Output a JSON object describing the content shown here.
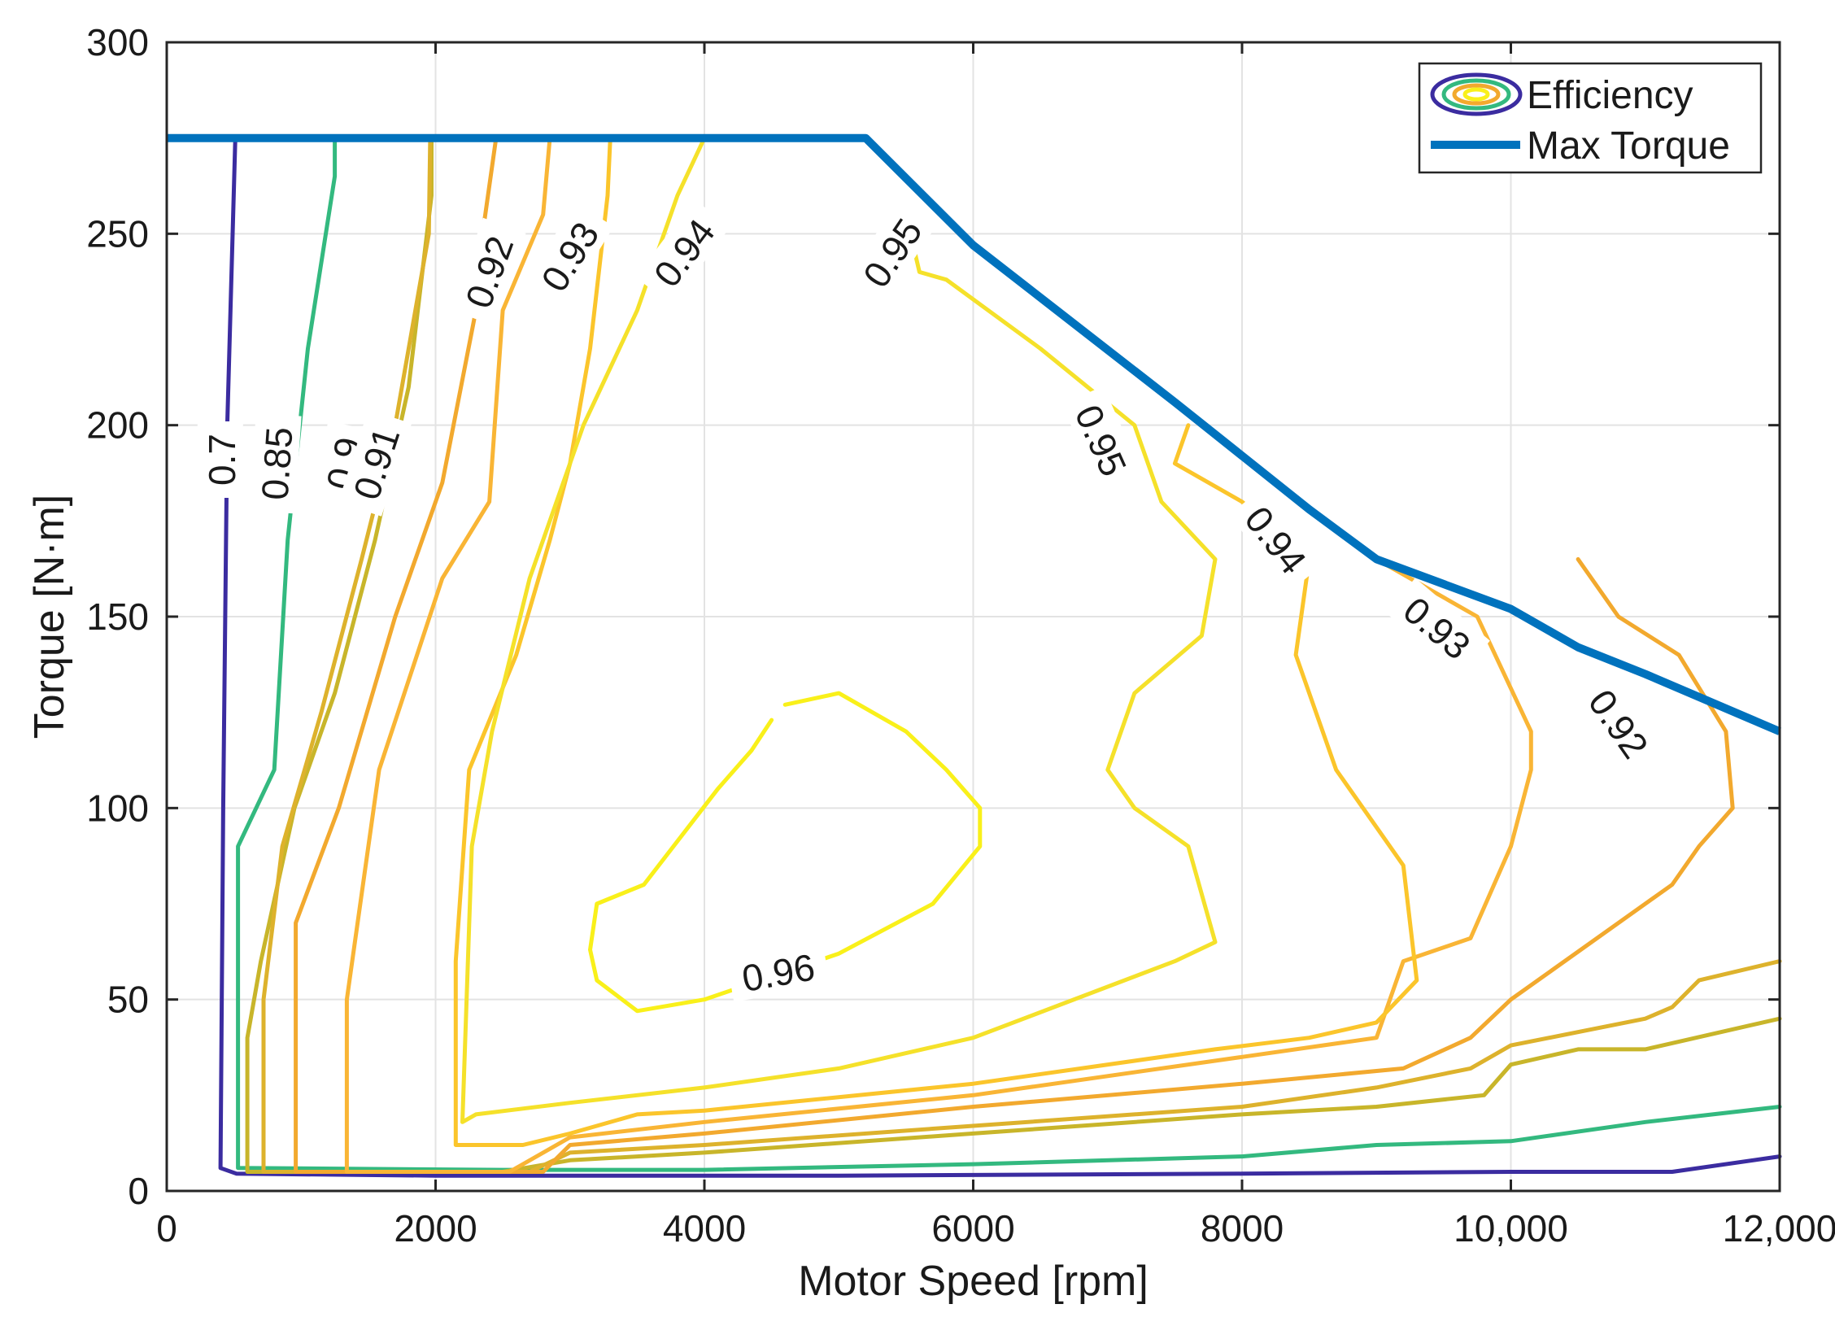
{
  "chart_data": {
    "type": "contour",
    "title": "",
    "xlabel": "Motor Speed [rpm]",
    "ylabel": "Torque [N·m]",
    "xlim": [
      0,
      12000
    ],
    "ylim": [
      0,
      300
    ],
    "grid": true,
    "legend_position": "top-right",
    "x_ticks": [
      0,
      2000,
      4000,
      6000,
      8000,
      10000,
      12000
    ],
    "x_tick_labels": [
      "0",
      "2000",
      "4000",
      "6000",
      "8000",
      "10,000",
      "12,000"
    ],
    "y_ticks": [
      0,
      50,
      100,
      150,
      200,
      250,
      300
    ],
    "y_tick_labels": [
      "0",
      "50",
      "100",
      "150",
      "200",
      "250",
      "300"
    ],
    "legend": [
      {
        "label": "Efficiency",
        "kind": "contour"
      },
      {
        "label": "Max Torque",
        "kind": "line"
      }
    ],
    "max_torque": {
      "name": "Max Torque",
      "color": "#0072bd",
      "x": [
        0,
        5200,
        6000,
        7500,
        8500,
        9000,
        10000,
        10500,
        11000,
        12000
      ],
      "y": [
        275,
        275,
        247,
        206,
        178,
        165,
        152,
        142,
        135,
        120
      ]
    },
    "contours": [
      {
        "level": 0.7,
        "color": "#3b2ca0",
        "x": [
          510,
          450,
          420,
          400,
          520,
          2000,
          5000,
          8000,
          10000,
          11200,
          12000
        ],
        "y": [
          275,
          200,
          100,
          6,
          4.5,
          4,
          4,
          4.5,
          5,
          5,
          9
        ]
      },
      {
        "level": 0.85,
        "color": "#33b97f",
        "x": [
          1250,
          1250,
          1050,
          900,
          800,
          530,
          530,
          2500,
          3000,
          4000,
          6000,
          8000,
          9000,
          10000,
          11000,
          12000
        ],
        "y": [
          275,
          265,
          220,
          170,
          110,
          90,
          6,
          5.5,
          5.5,
          5.5,
          7,
          9,
          12,
          13,
          18,
          22
        ]
      },
      {
        "level": 0.9,
        "color": "#c8b52a",
        "x": [
          1970,
          1970,
          1800,
          1550,
          1250,
          950,
          700,
          600,
          600,
          2500,
          3000,
          4000,
          6000,
          8000,
          9000,
          9800,
          10000,
          10500,
          11000,
          12000
        ],
        "y": [
          275,
          260,
          210,
          170,
          130,
          100,
          60,
          40,
          5,
          5,
          8,
          10,
          15,
          20,
          22,
          25,
          33,
          37,
          37,
          45
        ]
      },
      {
        "level": 0.91,
        "color": "#ddb22c",
        "x": [
          1960,
          1950,
          1700,
          1450,
          1150,
          860,
          720,
          720,
          2700,
          3000,
          4000,
          6000,
          8000,
          9000,
          9700,
          10000,
          11000,
          11200,
          11400,
          12000
        ],
        "y": [
          275,
          250,
          200,
          165,
          125,
          90,
          50,
          5,
          5,
          10,
          12,
          17,
          22,
          27,
          32,
          38,
          45,
          48,
          55,
          60
        ]
      },
      {
        "level": 0.92,
        "color": "#f2a92e",
        "x": [
          2450,
          2350,
          2300,
          2050,
          1700,
          1280,
          960,
          960,
          2800,
          3000,
          4000,
          6000,
          8000,
          9200,
          9700,
          10000,
          11200,
          11400,
          11650,
          11600,
          11250,
          10800,
          10500
        ],
        "y": [
          275,
          250,
          230,
          185,
          150,
          100,
          70,
          5,
          5,
          12,
          15,
          22,
          28,
          32,
          40,
          50,
          80,
          90,
          100,
          120,
          140,
          150,
          165
        ]
      },
      {
        "level": 0.93,
        "color": "#f9b535",
        "x": [
          2850,
          2800,
          2500,
          2400,
          2050,
          1580,
          1340,
          1340,
          2550,
          3000,
          4000,
          6000,
          8000,
          9000,
          9200,
          9700,
          10000,
          10150,
          10150,
          9750,
          9000
        ],
        "y": [
          275,
          255,
          230,
          180,
          160,
          110,
          50,
          5,
          5,
          14,
          18,
          25,
          35,
          40,
          60,
          66,
          90,
          110,
          120,
          150,
          165
        ]
      },
      {
        "level": 0.94,
        "color": "#fbc52b",
        "x": [
          3300,
          3280,
          3150,
          3000,
          2850,
          2600,
          2250,
          2150,
          2150,
          2650,
          3000,
          3500,
          4000,
          6000,
          7800,
          8500,
          9000,
          9300,
          9200,
          8700,
          8400,
          8500,
          8000,
          7500,
          7600
        ],
        "y": [
          275,
          260,
          220,
          190,
          170,
          140,
          110,
          60,
          12,
          12,
          15,
          20,
          21,
          28,
          37,
          40,
          44,
          55,
          85,
          110,
          140,
          165,
          180,
          190,
          200
        ]
      },
      {
        "level": 0.95,
        "color": "#f5e12a",
        "x": [
          4000,
          3800,
          3500,
          3100,
          2700,
          2420,
          2270,
          2200,
          2300,
          3000,
          4000,
          5000,
          6000,
          7500,
          7800,
          7600,
          7200,
          7000,
          7200,
          7700,
          7800,
          7400,
          7200,
          6500,
          5800,
          5600,
          5500
        ],
        "y": [
          275,
          260,
          230,
          200,
          160,
          120,
          90,
          18,
          20,
          23,
          27,
          32,
          40,
          60,
          65,
          90,
          100,
          110,
          130,
          145,
          165,
          180,
          200,
          220,
          238,
          240,
          255
        ]
      },
      {
        "level": 0.96,
        "color": "#f9f01a",
        "x": [
          4500,
          4350,
          4100,
          3550,
          3200,
          3150,
          3200,
          3500,
          4000,
          5000,
          5700,
          6050,
          6050,
          5800,
          5500,
          5000,
          4600
        ],
        "y": [
          123,
          115,
          105,
          80,
          75,
          63,
          55,
          47,
          50,
          62,
          75,
          90,
          100,
          110,
          120,
          130,
          127
        ]
      }
    ],
    "contour_labels": [
      {
        "text": "0.7",
        "x": 410,
        "y": 191,
        "angle": -90
      },
      {
        "text": "0.85",
        "x": 820,
        "y": 190,
        "angle": -86
      },
      {
        "text": "0.9",
        "x": 1320,
        "y": 190,
        "angle": -78
      },
      {
        "text": "0.91",
        "x": 1560,
        "y": 190,
        "angle": -72
      },
      {
        "text": "0.92",
        "x": 2400,
        "y": 240,
        "angle": -70
      },
      {
        "text": "0.93",
        "x": 3000,
        "y": 244,
        "angle": -58
      },
      {
        "text": "0.94",
        "x": 3850,
        "y": 245,
        "angle": -53
      },
      {
        "text": "0.95",
        "x": 5400,
        "y": 245,
        "angle": -56
      },
      {
        "text": "0.95",
        "x": 6950,
        "y": 196,
        "angle": 66
      },
      {
        "text": "0.94",
        "x": 8250,
        "y": 170,
        "angle": 52
      },
      {
        "text": "0.93",
        "x": 9450,
        "y": 147,
        "angle": 40
      },
      {
        "text": "0.92",
        "x": 10800,
        "y": 122,
        "angle": 55
      },
      {
        "text": "0.96",
        "x": 4550,
        "y": 57,
        "angle": -10
      }
    ]
  }
}
